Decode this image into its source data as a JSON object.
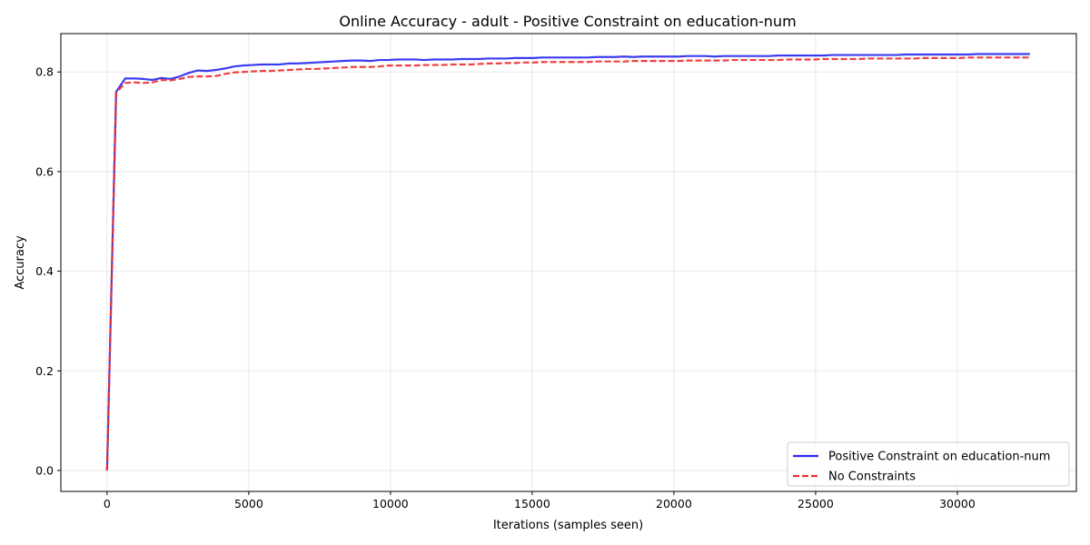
{
  "chart_data": {
    "type": "line",
    "title": "Online Accuracy - adult - Positive Constraint on education-num",
    "xlabel": "Iterations (samples seen)",
    "ylabel": "Accuracy",
    "xlim": [
      -1630,
      34200
    ],
    "ylim": [
      -0.042,
      0.877
    ],
    "xticks": [
      0,
      5000,
      10000,
      15000,
      20000,
      25000,
      30000
    ],
    "xtick_labels": [
      "0",
      "5000",
      "10000",
      "15000",
      "20000",
      "25000",
      "30000"
    ],
    "yticks": [
      0.0,
      0.2,
      0.4,
      0.6,
      0.8
    ],
    "ytick_labels": [
      "0.0",
      "0.2",
      "0.4",
      "0.6",
      "0.8"
    ],
    "grid": true,
    "legend_position": "lower-right",
    "series": [
      {
        "name": "Positive Constraint on education-num",
        "color": "#2b2bf0",
        "style": "solid",
        "x": [
          0,
          320,
          640,
          960,
          1280,
          1600,
          1920,
          2240,
          2560,
          2880,
          3200,
          3520,
          3840,
          4160,
          4480,
          4800,
          5120,
          5440,
          5760,
          6080,
          6400,
          6720,
          7040,
          7360,
          7680,
          8000,
          8320,
          8640,
          8960,
          9280,
          9600,
          9920,
          10240,
          10560,
          10880,
          11200,
          11520,
          11840,
          12160,
          12480,
          12800,
          13120,
          13440,
          13760,
          14080,
          14400,
          14720,
          15040,
          15360,
          15680,
          16000,
          16320,
          16640,
          16960,
          17280,
          17600,
          17920,
          18240,
          18560,
          18880,
          19200,
          19520,
          19840,
          20160,
          20480,
          20800,
          21120,
          21440,
          21760,
          22080,
          22400,
          22720,
          23040,
          23360,
          23680,
          24000,
          24320,
          24640,
          24960,
          25280,
          25600,
          25920,
          26240,
          26560,
          26880,
          27200,
          27520,
          27840,
          28160,
          28480,
          28800,
          29120,
          29440,
          29760,
          30080,
          30400,
          30720,
          31040,
          31360,
          31680,
          32000,
          32320,
          32560
        ],
        "values": [
          0.0,
          0.76,
          0.787,
          0.787,
          0.786,
          0.784,
          0.788,
          0.786,
          0.791,
          0.798,
          0.803,
          0.802,
          0.804,
          0.807,
          0.811,
          0.813,
          0.814,
          0.815,
          0.815,
          0.815,
          0.817,
          0.817,
          0.818,
          0.819,
          0.82,
          0.821,
          0.822,
          0.823,
          0.823,
          0.822,
          0.824,
          0.824,
          0.825,
          0.825,
          0.825,
          0.824,
          0.825,
          0.825,
          0.825,
          0.826,
          0.826,
          0.826,
          0.827,
          0.827,
          0.827,
          0.828,
          0.828,
          0.828,
          0.829,
          0.829,
          0.829,
          0.829,
          0.829,
          0.829,
          0.83,
          0.83,
          0.83,
          0.831,
          0.83,
          0.831,
          0.831,
          0.831,
          0.831,
          0.831,
          0.832,
          0.832,
          0.832,
          0.831,
          0.832,
          0.832,
          0.832,
          0.832,
          0.832,
          0.832,
          0.833,
          0.833,
          0.833,
          0.833,
          0.833,
          0.833,
          0.834,
          0.834,
          0.834,
          0.834,
          0.834,
          0.834,
          0.834,
          0.834,
          0.835,
          0.835,
          0.835,
          0.835,
          0.835,
          0.835,
          0.835,
          0.835,
          0.836,
          0.836,
          0.836,
          0.836,
          0.836,
          0.836,
          0.836
        ]
      },
      {
        "name": "No Constraints",
        "color": "#f03030",
        "style": "dashed",
        "x": [
          0,
          320,
          640,
          960,
          1280,
          1600,
          1920,
          2240,
          2560,
          2880,
          3200,
          3520,
          3840,
          4160,
          4480,
          4800,
          5120,
          5440,
          5760,
          6080,
          6400,
          6720,
          7040,
          7360,
          7680,
          8000,
          8320,
          8640,
          8960,
          9280,
          9600,
          9920,
          10240,
          10560,
          10880,
          11200,
          11520,
          11840,
          12160,
          12480,
          12800,
          13120,
          13440,
          13760,
          14080,
          14400,
          14720,
          15040,
          15360,
          15680,
          16000,
          16320,
          16640,
          16960,
          17280,
          17600,
          17920,
          18240,
          18560,
          18880,
          19200,
          19520,
          19840,
          20160,
          20480,
          20800,
          21120,
          21440,
          21760,
          22080,
          22400,
          22720,
          23040,
          23360,
          23680,
          24000,
          24320,
          24640,
          24960,
          25280,
          25600,
          25920,
          26240,
          26560,
          26880,
          27200,
          27520,
          27840,
          28160,
          28480,
          28800,
          29120,
          29440,
          29760,
          30080,
          30400,
          30720,
          31040,
          31360,
          31680,
          32000,
          32320,
          32560
        ],
        "values": [
          0.0,
          0.758,
          0.778,
          0.779,
          0.778,
          0.779,
          0.784,
          0.783,
          0.786,
          0.79,
          0.791,
          0.791,
          0.792,
          0.796,
          0.799,
          0.8,
          0.801,
          0.802,
          0.802,
          0.803,
          0.804,
          0.805,
          0.806,
          0.806,
          0.807,
          0.808,
          0.809,
          0.81,
          0.81,
          0.81,
          0.811,
          0.813,
          0.813,
          0.813,
          0.813,
          0.814,
          0.814,
          0.814,
          0.815,
          0.815,
          0.815,
          0.816,
          0.817,
          0.817,
          0.818,
          0.818,
          0.819,
          0.819,
          0.82,
          0.82,
          0.82,
          0.82,
          0.82,
          0.82,
          0.821,
          0.821,
          0.821,
          0.821,
          0.822,
          0.822,
          0.822,
          0.822,
          0.822,
          0.822,
          0.823,
          0.823,
          0.823,
          0.823,
          0.823,
          0.824,
          0.824,
          0.824,
          0.824,
          0.824,
          0.824,
          0.825,
          0.825,
          0.825,
          0.825,
          0.826,
          0.826,
          0.826,
          0.826,
          0.826,
          0.827,
          0.827,
          0.827,
          0.827,
          0.827,
          0.827,
          0.828,
          0.828,
          0.828,
          0.828,
          0.828,
          0.829,
          0.829,
          0.829,
          0.829,
          0.829,
          0.829,
          0.829,
          0.829
        ]
      }
    ]
  }
}
